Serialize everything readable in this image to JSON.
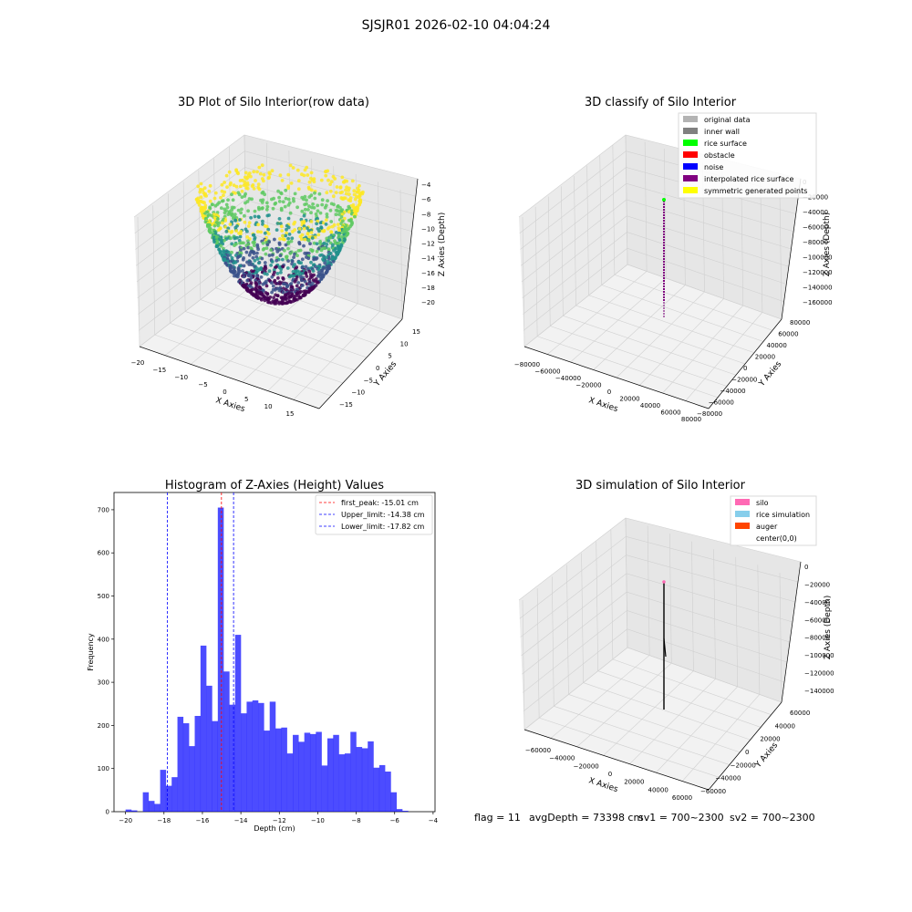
{
  "figure": {
    "suptitle": "SJSJR01 2026-02-10 04:04:24",
    "footer": {
      "flag": "flag = 11",
      "avg_depth": "avgDepth = 73398 cm",
      "sv1": "sv1 = 700~2300",
      "sv2": "sv2 = 700~2300"
    }
  },
  "panel_raw": {
    "title": "3D Plot of Silo Interior(row data)",
    "xlabel": "X Axies",
    "ylabel": "Y Axies",
    "zlabel": "Z Axies (Depth)",
    "xticks": [
      "−20",
      "−15",
      "−10",
      "−5",
      "0",
      "5",
      "10",
      "15"
    ],
    "yticks": [
      "−15",
      "−10",
      "−5",
      "0",
      "5",
      "10",
      "15"
    ],
    "zticks": [
      "−4",
      "−6",
      "−8",
      "−10",
      "−12",
      "−14",
      "−16",
      "−18",
      "−20"
    ],
    "colormap": [
      "#440154",
      "#3b528b",
      "#21918c",
      "#5ec962",
      "#fde725"
    ]
  },
  "panel_classify": {
    "title": "3D classify of Silo Interior",
    "xlabel": "X Axies",
    "ylabel": "Y Axies",
    "zlabel": "Z Axies (Depth)",
    "xticks": [
      "−80000",
      "−60000",
      "−40000",
      "−20000",
      "0",
      "20000",
      "40000",
      "60000",
      "80000"
    ],
    "yticks": [
      "−80000",
      "−60000",
      "−40000",
      "−20000",
      "0",
      "20000",
      "40000",
      "60000",
      "80000"
    ],
    "zticks": [
      "0",
      "−20000",
      "−40000",
      "−60000",
      "−80000",
      "−100000",
      "−120000",
      "−140000",
      "−160000"
    ],
    "legend": [
      {
        "label": "original data",
        "color": "#b3b3b3"
      },
      {
        "label": "inner wall",
        "color": "#808080"
      },
      {
        "label": "rice surface",
        "color": "#00ff00"
      },
      {
        "label": "obstacle",
        "color": "#ff0000"
      },
      {
        "label": "noise",
        "color": "#0000ff"
      },
      {
        "label": "interpolated rice surface",
        "color": "#800080"
      },
      {
        "label": "symmetric generated points",
        "color": "#ffff00"
      }
    ]
  },
  "panel_sim": {
    "title": "3D simulation of Silo Interior",
    "xlabel": "X Axies",
    "ylabel": "Y Axies",
    "zlabel": "Z Axies (Depth)",
    "xticks": [
      "−60000",
      "−40000",
      "−20000",
      "0",
      "20000",
      "40000",
      "60000"
    ],
    "yticks": [
      "−60000",
      "−40000",
      "−20000",
      "0",
      "20000",
      "40000",
      "60000"
    ],
    "zticks": [
      "0",
      "−20000",
      "−40000",
      "−60000",
      "−80000",
      "−100000",
      "−120000",
      "−140000"
    ],
    "legend": [
      {
        "label": "silo",
        "color": "#ff69b4"
      },
      {
        "label": "rice simulation",
        "color": "#87ceeb"
      },
      {
        "label": "auger",
        "color": "#ff4500"
      },
      {
        "label": "center(0,0)",
        "color": "#ffffff"
      }
    ]
  },
  "chart_data": {
    "type": "bar",
    "title": "Histogram of Z-Axies (Height) Values",
    "xlabel": "Depth (cm)",
    "ylabel": "Frequency",
    "xlim": [
      -20.6,
      -3.9
    ],
    "ylim": [
      0,
      740
    ],
    "xticks": [
      -20,
      -18,
      -16,
      -14,
      -12,
      -10,
      -8,
      -6,
      -4
    ],
    "xtick_labels": [
      "−20",
      "−18",
      "−16",
      "−14",
      "−12",
      "−10",
      "−8",
      "−6",
      "−4"
    ],
    "yticks": [
      0,
      100,
      200,
      300,
      400,
      500,
      600,
      700
    ],
    "bar_color": "#0000ff",
    "bin_start": -20.0,
    "bin_width": 0.3,
    "values": [
      5,
      3,
      0,
      45,
      25,
      18,
      97,
      60,
      80,
      220,
      205,
      152,
      222,
      385,
      292,
      210,
      705,
      325,
      248,
      410,
      228,
      255,
      258,
      252,
      188,
      255,
      193,
      195,
      135,
      178,
      162,
      183,
      180,
      185,
      107,
      170,
      178,
      133,
      135,
      185,
      150,
      147,
      163,
      102,
      108,
      93,
      45,
      6,
      2
    ],
    "vlines": [
      {
        "x": -15.01,
        "color": "#ff0000",
        "label": "first_peak: -15.01 cm"
      },
      {
        "x": -14.38,
        "color": "#0000ff",
        "label": "Upper_limit: -14.38 cm"
      },
      {
        "x": -17.82,
        "color": "#0000ff",
        "label": "Lower_limit: -17.82 cm"
      }
    ],
    "legend_position": "top-right"
  }
}
